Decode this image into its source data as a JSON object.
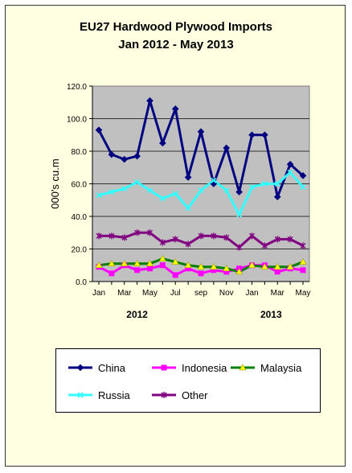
{
  "chart_data": {
    "type": "line",
    "title": "EU27 Hardwood Plywood Imports",
    "subtitle": "Jan 2012 - May 2013",
    "ylabel": "000's cu.m",
    "ylim": [
      0,
      120
    ],
    "yticks": [
      "0.0",
      "20.0",
      "40.0",
      "60.0",
      "80.0",
      "100.0",
      "120.0"
    ],
    "x_tick_labels": [
      "Jan",
      "Mar",
      "May",
      "Jul",
      "sep",
      "Nov",
      "Jan",
      "Mar",
      "May"
    ],
    "year_labels": [
      "2012",
      "2013"
    ],
    "grid": true,
    "plot_background": "#c0c0c0",
    "legend_position": "bottom",
    "x": [
      "Jan 2012",
      "Feb 2012",
      "Mar 2012",
      "Apr 2012",
      "May 2012",
      "Jun 2012",
      "Jul 2012",
      "Aug 2012",
      "Sep 2012",
      "Oct 2012",
      "Nov 2012",
      "Dec 2012",
      "Jan 2013",
      "Feb 2013",
      "Mar 2013",
      "Apr 2013",
      "May 2013"
    ],
    "series": [
      {
        "name": "China",
        "color": "#000080",
        "marker": "diamond",
        "values": [
          93,
          78,
          75,
          77,
          111,
          85,
          106,
          64,
          92,
          60,
          82,
          55,
          90,
          90,
          52,
          72,
          65
        ]
      },
      {
        "name": "Indonesia",
        "color": "#ff00ff",
        "marker": "square",
        "values": [
          9,
          5,
          10,
          7,
          8,
          10,
          4,
          8,
          5,
          7,
          6,
          8,
          10,
          10,
          6,
          8,
          7
        ]
      },
      {
        "name": "Malaysia",
        "color": "#008000",
        "marker": "triangle",
        "values": [
          10,
          11,
          11,
          11,
          11,
          14,
          12,
          10,
          9,
          9,
          8,
          6,
          10,
          9,
          9,
          9,
          12
        ]
      },
      {
        "name": "Russia",
        "color": "#33ffff",
        "marker": "x",
        "values": [
          53,
          55,
          57,
          61,
          56,
          51,
          54,
          45,
          56,
          62,
          56,
          41,
          58,
          60,
          60,
          67,
          58
        ]
      },
      {
        "name": "Other",
        "color": "#800080",
        "marker": "star",
        "values": [
          28,
          28,
          27,
          30,
          30,
          24,
          26,
          23,
          28,
          28,
          27,
          21,
          28,
          22,
          26,
          26,
          22
        ]
      }
    ]
  }
}
